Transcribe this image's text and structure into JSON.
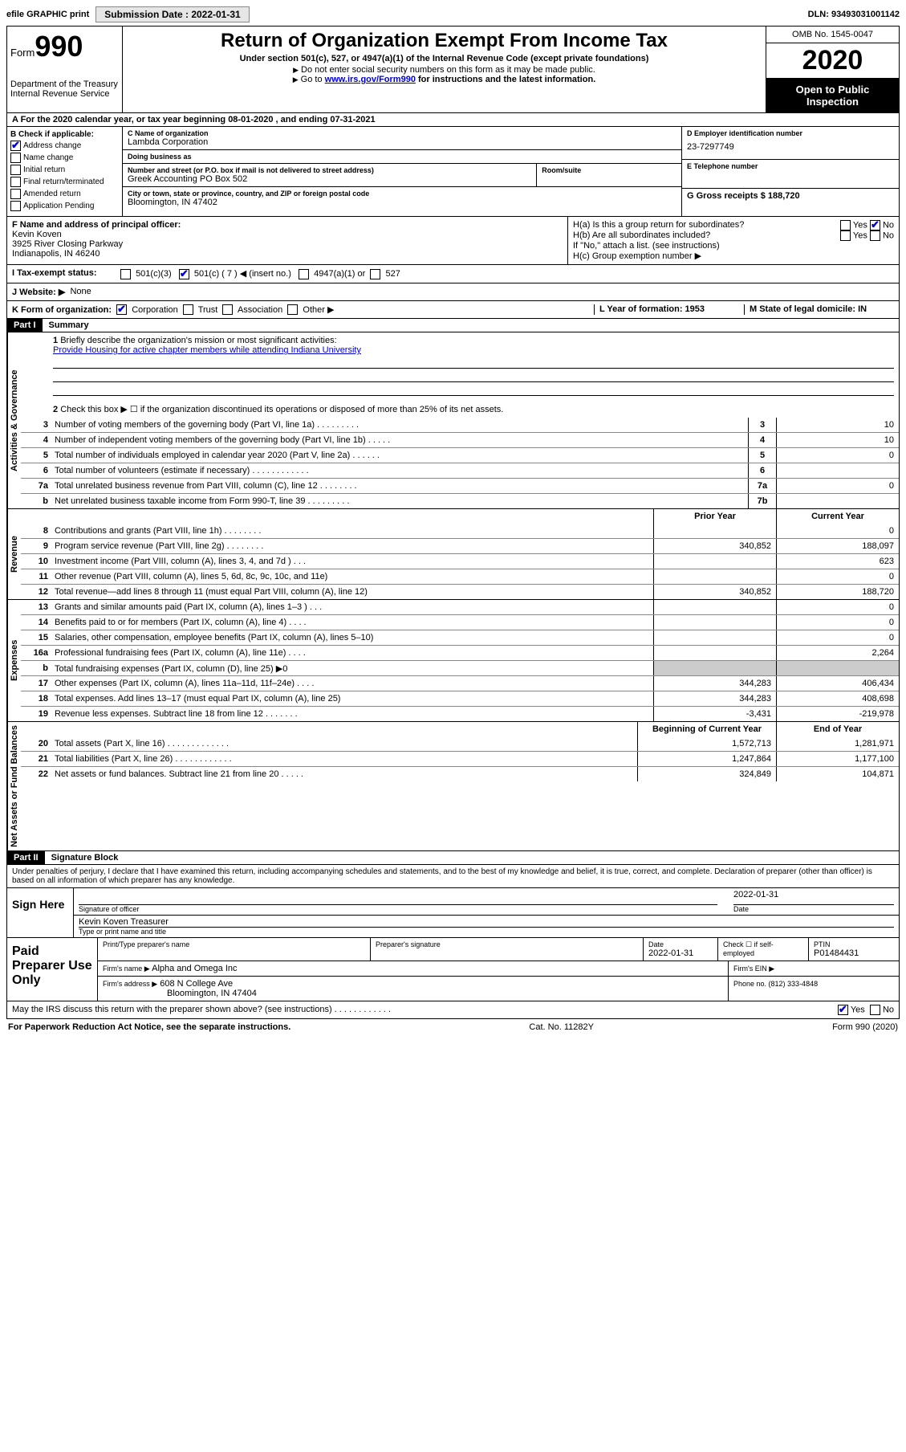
{
  "topbar": {
    "efile": "efile GRAPHIC print",
    "submission_label": "Submission Date : 2022-01-31",
    "dln": "DLN: 93493031001142"
  },
  "header": {
    "form_prefix": "Form",
    "form_number": "990",
    "dept": "Department of the Treasury\nInternal Revenue Service",
    "title": "Return of Organization Exempt From Income Tax",
    "sub1": "Under section 501(c), 527, or 4947(a)(1) of the Internal Revenue Code (except private foundations)",
    "note1": "Do not enter social security numbers on this form as it may be made public.",
    "note2_pre": "Go to ",
    "note2_link": "www.irs.gov/Form990",
    "note2_post": " for instructions and the latest information.",
    "omb": "OMB No. 1545-0047",
    "year": "2020",
    "inspection": "Open to Public Inspection"
  },
  "rowA": {
    "text": "A For the 2020 calendar year, or tax year beginning 08-01-2020    , and ending 07-31-2021"
  },
  "sectionB": {
    "b_label": "B Check if applicable:",
    "address_change": "Address change",
    "name_change": "Name change",
    "initial_return": "Initial return",
    "final_return": "Final return/terminated",
    "amended": "Amended return",
    "app_pending": "Application Pending",
    "c_label": "C Name of organization",
    "org_name": "Lambda Corporation",
    "dba_label": "Doing business as",
    "addr_label": "Number and street (or P.O. box if mail is not delivered to street address)",
    "room_label": "Room/suite",
    "addr": "Greek Accounting PO Box 502",
    "city_label": "City or town, state or province, country, and ZIP or foreign postal code",
    "city": "Bloomington, IN  47402",
    "d_label": "D Employer identification number",
    "ein": "23-7297749",
    "e_label": "E Telephone number",
    "g_label": "G Gross receipts $ 188,720"
  },
  "sectionFH": {
    "f_label": "F Name and address of principal officer:",
    "f_name": "Kevin Koven",
    "f_addr1": "3925 River Closing Parkway",
    "f_addr2": "Indianapolis, IN  46240",
    "ha": "H(a)  Is this a group return for subordinates?",
    "hb": "H(b)  Are all subordinates included?",
    "hb_note": "If \"No,\" attach a list. (see instructions)",
    "hc": "H(c)  Group exemption number ▶",
    "yes": "Yes",
    "no": "No"
  },
  "rowI": {
    "label": "I  Tax-exempt status:",
    "c3": "501(c)(3)",
    "c7": "501(c) ( 7 ) ◀ (insert no.)",
    "a1": "4947(a)(1) or",
    "s527": "527"
  },
  "rowJ": {
    "label": "J  Website: ▶",
    "value": "None"
  },
  "rowK": {
    "label": "K Form of organization:",
    "corp": "Corporation",
    "trust": "Trust",
    "assoc": "Association",
    "other": "Other ▶",
    "l_label": "L Year of formation: 1953",
    "m_label": "M State of legal domicile: IN"
  },
  "part1": {
    "header": "Part I",
    "title": "Summary",
    "q1": "Briefly describe the organization's mission or most significant activities:",
    "mission": "Provide Housing for active chapter members while attending Indiana University",
    "q2": "Check this box ▶ ☐  if the organization discontinued its operations or disposed of more than 25% of its net assets.",
    "rows_top": [
      {
        "n": "3",
        "t": "Number of voting members of the governing body (Part VI, line 1a)   .    .    .    .    .    .    .    .    .",
        "b": "3",
        "v": "10"
      },
      {
        "n": "4",
        "t": "Number of independent voting members of the governing body (Part VI, line 1b)   .    .    .    .    .",
        "b": "4",
        "v": "10"
      },
      {
        "n": "5",
        "t": "Total number of individuals employed in calendar year 2020 (Part V, line 2a)   .    .    .    .    .    .",
        "b": "5",
        "v": "0"
      },
      {
        "n": "6",
        "t": "Total number of volunteers (estimate if necessary)    .    .    .    .    .    .    .    .    .    .    .    .",
        "b": "6",
        "v": ""
      },
      {
        "n": "7a",
        "t": "Total unrelated business revenue from Part VIII, column (C), line 12   .    .    .    .    .    .    .    .",
        "b": "7a",
        "v": "0"
      },
      {
        "n": "b",
        "t": "Net unrelated business taxable income from Form 990-T, line 39   .    .    .    .    .    .    .    .    .",
        "b": "7b",
        "v": ""
      }
    ],
    "prior_year": "Prior Year",
    "current_year": "Current Year",
    "beg_year": "Beginning of Current Year",
    "end_year": "End of Year",
    "revenue": [
      {
        "n": "8",
        "t": "Contributions and grants (Part VIII, line 1h)   .    .    .    .    .    .    .    .",
        "pv": "",
        "cv": "0"
      },
      {
        "n": "9",
        "t": "Program service revenue (Part VIII, line 2g)   .    .    .    .    .    .    .    .",
        "pv": "340,852",
        "cv": "188,097"
      },
      {
        "n": "10",
        "t": "Investment income (Part VIII, column (A), lines 3, 4, and 7d )   .    .    .",
        "pv": "",
        "cv": "623"
      },
      {
        "n": "11",
        "t": "Other revenue (Part VIII, column (A), lines 5, 6d, 8c, 9c, 10c, and 11e)",
        "pv": "",
        "cv": "0"
      },
      {
        "n": "12",
        "t": "Total revenue—add lines 8 through 11 (must equal Part VIII, column (A), line 12)",
        "pv": "340,852",
        "cv": "188,720"
      }
    ],
    "expenses": [
      {
        "n": "13",
        "t": "Grants and similar amounts paid (Part IX, column (A), lines 1–3 )   .    .    .",
        "pv": "",
        "cv": "0"
      },
      {
        "n": "14",
        "t": "Benefits paid to or for members (Part IX, column (A), line 4)   .    .    .    .",
        "pv": "",
        "cv": "0"
      },
      {
        "n": "15",
        "t": "Salaries, other compensation, employee benefits (Part IX, column (A), lines 5–10)",
        "pv": "",
        "cv": "0"
      },
      {
        "n": "16a",
        "t": "Professional fundraising fees (Part IX, column (A), line 11e)   .    .    .    .",
        "pv": "",
        "cv": "2,264"
      },
      {
        "n": "b",
        "t": "Total fundraising expenses (Part IX, column (D), line 25) ▶0",
        "pv": "shaded",
        "cv": "shaded"
      },
      {
        "n": "17",
        "t": "Other expenses (Part IX, column (A), lines 11a–11d, 11f–24e)   .    .    .    .",
        "pv": "344,283",
        "cv": "406,434"
      },
      {
        "n": "18",
        "t": "Total expenses. Add lines 13–17 (must equal Part IX, column (A), line 25)",
        "pv": "344,283",
        "cv": "408,698"
      },
      {
        "n": "19",
        "t": "Revenue less expenses. Subtract line 18 from line 12 .    .    .    .    .    .    .",
        "pv": "-3,431",
        "cv": "-219,978"
      }
    ],
    "netassets": [
      {
        "n": "20",
        "t": "Total assets (Part X, line 16)   .    .    .    .    .    .    .    .    .    .    .    .    .",
        "pv": "1,572,713",
        "cv": "1,281,971"
      },
      {
        "n": "21",
        "t": "Total liabilities (Part X, line 26)   .    .    .    .    .    .    .    .    .    .    .    .",
        "pv": "1,247,864",
        "cv": "1,177,100"
      },
      {
        "n": "22",
        "t": "Net assets or fund balances. Subtract line 21 from line 20 .    .    .    .    .",
        "pv": "324,849",
        "cv": "104,871"
      }
    ],
    "vert_gov": "Activities & Governance",
    "vert_rev": "Revenue",
    "vert_exp": "Expenses",
    "vert_net": "Net Assets or Fund Balances"
  },
  "part2": {
    "header": "Part II",
    "title": "Signature Block",
    "declare": "Under penalties of perjury, I declare that I have examined this return, including accompanying schedules and statements, and to the best of my knowledge and belief, it is true, correct, and complete. Declaration of preparer (other than officer) is based on all information of which preparer has any knowledge."
  },
  "sign": {
    "left": "Sign Here",
    "sig_officer": "Signature of officer",
    "date": "2022-01-31",
    "date_label": "Date",
    "name": "Kevin Koven  Treasurer",
    "name_label": "Type or print name and title"
  },
  "prep": {
    "left": "Paid Preparer Use Only",
    "print_label": "Print/Type preparer's name",
    "sig_label": "Preparer's signature",
    "date_label": "Date",
    "date": "2022-01-31",
    "check_label": "Check ☐ if self-employed",
    "ptin_label": "PTIN",
    "ptin": "P01484431",
    "firm_name_label": "Firm's name    ▶",
    "firm_name": "Alpha and Omega Inc",
    "firm_ein_label": "Firm's EIN ▶",
    "firm_addr_label": "Firm's address ▶",
    "firm_addr1": "608 N College Ave",
    "firm_addr2": "Bloomington, IN  47404",
    "phone_label": "Phone no. (812) 333-4848"
  },
  "irs_discuss": "May the IRS discuss this return with the preparer shown above? (see instructions)   .    .    .    .    .    .    .    .    .    .    .    .",
  "footer": {
    "left": "For Paperwork Reduction Act Notice, see the separate instructions.",
    "mid": "Cat. No. 11282Y",
    "right": "Form 990 (2020)"
  }
}
